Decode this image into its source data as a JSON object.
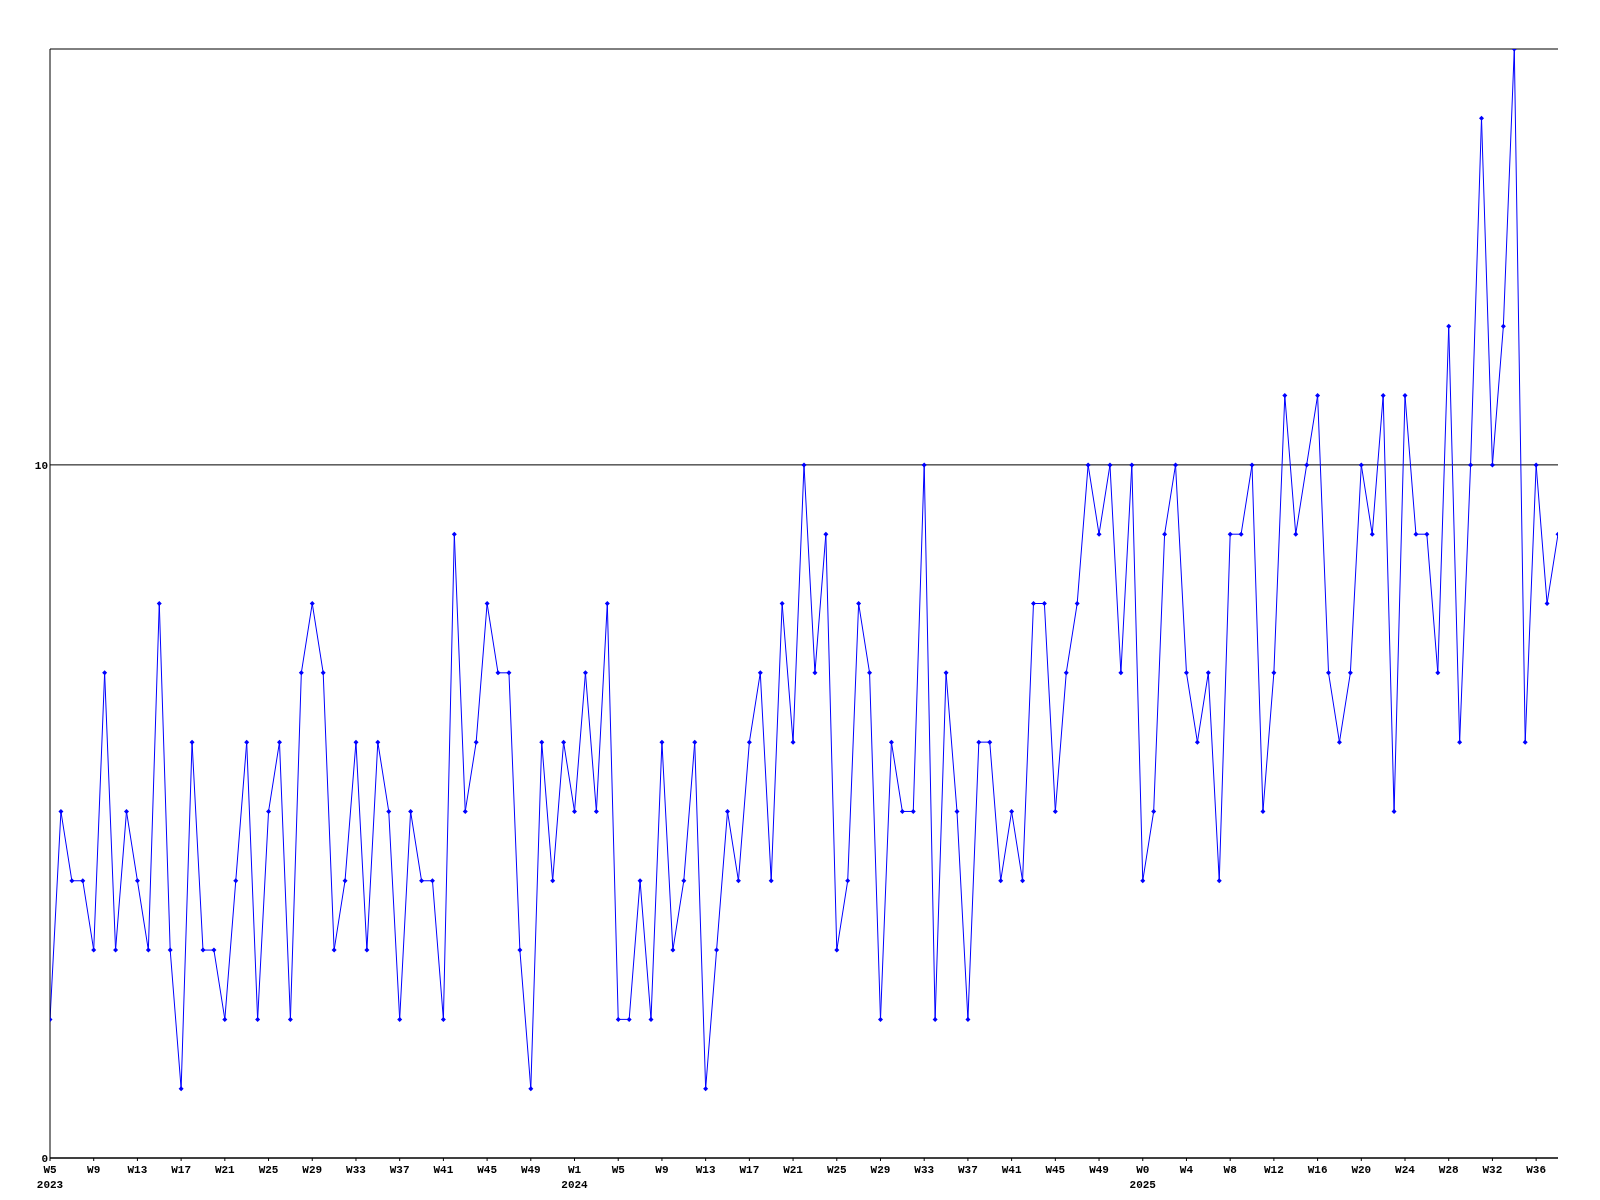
{
  "chart_data": {
    "type": "line",
    "categories": [
      "W5\n2023",
      null,
      null,
      null,
      "W9",
      null,
      null,
      null,
      "W13",
      null,
      null,
      null,
      "W17",
      null,
      null,
      null,
      "W21",
      null,
      null,
      null,
      "W25",
      null,
      null,
      null,
      "W29",
      null,
      null,
      null,
      "W33",
      null,
      null,
      null,
      "W37",
      null,
      null,
      null,
      "W41",
      null,
      null,
      null,
      "W45",
      null,
      null,
      null,
      "W49",
      null,
      null,
      null,
      "W1\n2024",
      null,
      null,
      null,
      "W5",
      null,
      null,
      null,
      "W9",
      null,
      null,
      null,
      "W13",
      null,
      null,
      null,
      "W17",
      null,
      null,
      null,
      "W21",
      null,
      null,
      null,
      "W25",
      null,
      null,
      null,
      "W29",
      null,
      null,
      null,
      "W33",
      null,
      null,
      null,
      "W37",
      null,
      null,
      null,
      "W41",
      null,
      null,
      null,
      "W45",
      null,
      null,
      null,
      "W49",
      null,
      null,
      null,
      "W0\n2025",
      null,
      null,
      null,
      "W4",
      null,
      null,
      null,
      "W8",
      null,
      null,
      null,
      "W12",
      null,
      null,
      null,
      "W16",
      null,
      null,
      null,
      "W20",
      null,
      null,
      null,
      "W24",
      null,
      null,
      null,
      "W28",
      null,
      null,
      null,
      "W32",
      null,
      null,
      null,
      "W36",
      null,
      null
    ],
    "series": [
      {
        "color": "#0000ff",
        "values": [
          2,
          5,
          4,
          4,
          3,
          7,
          3,
          5,
          4,
          3,
          8,
          3,
          1,
          6,
          3,
          3,
          2,
          4,
          6,
          2,
          5,
          6,
          2,
          7,
          8,
          7,
          3,
          4,
          6,
          3,
          6,
          5,
          2,
          5,
          4,
          4,
          2,
          9,
          5,
          6,
          8,
          7,
          7,
          3,
          1,
          6,
          4,
          6,
          5,
          7,
          5,
          8,
          2,
          2,
          4,
          2,
          6,
          3,
          4,
          6,
          1,
          3,
          5,
          4,
          6,
          7,
          4,
          8,
          6,
          10,
          7,
          9,
          3,
          4,
          8,
          7,
          2,
          6,
          5,
          5,
          10,
          2,
          7,
          5,
          2,
          6,
          6,
          4,
          5,
          4,
          8,
          8,
          5,
          7,
          8,
          10,
          9,
          10,
          7,
          10,
          4,
          5,
          9,
          10,
          7,
          6,
          7,
          4,
          9,
          9,
          10,
          5,
          7,
          11,
          9,
          10,
          11,
          7,
          6,
          7,
          10,
          9,
          11,
          5,
          11,
          9,
          9,
          7,
          12,
          6,
          10,
          15,
          10,
          12,
          16,
          6,
          10,
          8,
          9
        ]
      }
    ],
    "ylim": [
      0,
      16
    ],
    "yticks": [
      0,
      10
    ],
    "grid": "y",
    "marker": "diamond",
    "line_style": "solid"
  }
}
